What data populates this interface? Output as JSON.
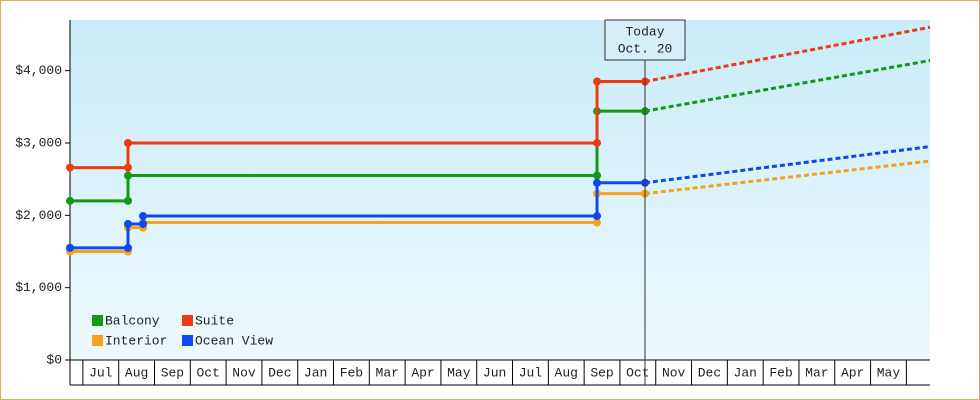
{
  "chart_data": {
    "type": "step-line",
    "categories": [
      "Jul",
      "Aug",
      "Sep",
      "Oct",
      "Nov",
      "Dec",
      "Jan",
      "Feb",
      "Mar",
      "Apr",
      "May",
      "Jun",
      "Jul",
      "Aug",
      "Sep",
      "Oct",
      "Nov",
      "Dec",
      "Jan",
      "Feb",
      "Mar",
      "Apr",
      "May"
    ],
    "xlim": [
      -0.36,
      23.66
    ],
    "ylim": [
      0,
      4700
    ],
    "yticks": [
      {
        "value": 0,
        "label": "$0"
      },
      {
        "value": 1000,
        "label": "$1,000"
      },
      {
        "value": 2000,
        "label": "$2,000"
      },
      {
        "value": 3000,
        "label": "$3,000"
      },
      {
        "value": 4000,
        "label": "$4,000"
      }
    ],
    "legend": "lower left",
    "annotation": {
      "x": 15.7,
      "lines": [
        "Today",
        "Oct. 20"
      ]
    },
    "series": [
      {
        "name": "Balcony",
        "color": "#129a12",
        "x": [
          -0.36,
          1.26,
          1.26,
          14.36,
          14.36,
          15.7
        ],
        "values": [
          2200,
          2200,
          2550,
          2550,
          3440,
          3440
        ],
        "forecast_x": [
          15.7,
          23.66
        ],
        "forecast_values": [
          3440,
          4140
        ]
      },
      {
        "name": "Suite",
        "color": "#f03a12",
        "x": [
          -0.36,
          1.26,
          1.26,
          14.36,
          14.36,
          15.7
        ],
        "values": [
          2660,
          2660,
          3000,
          3000,
          3850,
          3850
        ],
        "forecast_x": [
          15.7,
          23.66
        ],
        "forecast_values": [
          3850,
          4600
        ]
      },
      {
        "name": "Interior",
        "color": "#f5a31a",
        "x": [
          -0.36,
          1.26,
          1.26,
          1.68,
          1.68,
          14.36,
          14.36,
          15.7
        ],
        "values": [
          1500,
          1500,
          1830,
          1830,
          1900,
          1900,
          2300,
          2300
        ],
        "forecast_x": [
          15.7,
          23.66
        ],
        "forecast_values": [
          2300,
          2750
        ]
      },
      {
        "name": "Ocean View",
        "color": "#1247f0",
        "x": [
          -0.36,
          1.26,
          1.26,
          1.68,
          1.68,
          14.36,
          14.36,
          15.7
        ],
        "values": [
          1550,
          1550,
          1880,
          1880,
          1990,
          1990,
          2450,
          2450
        ],
        "forecast_x": [
          15.7,
          23.66
        ],
        "forecast_values": [
          2450,
          2950
        ]
      }
    ]
  }
}
